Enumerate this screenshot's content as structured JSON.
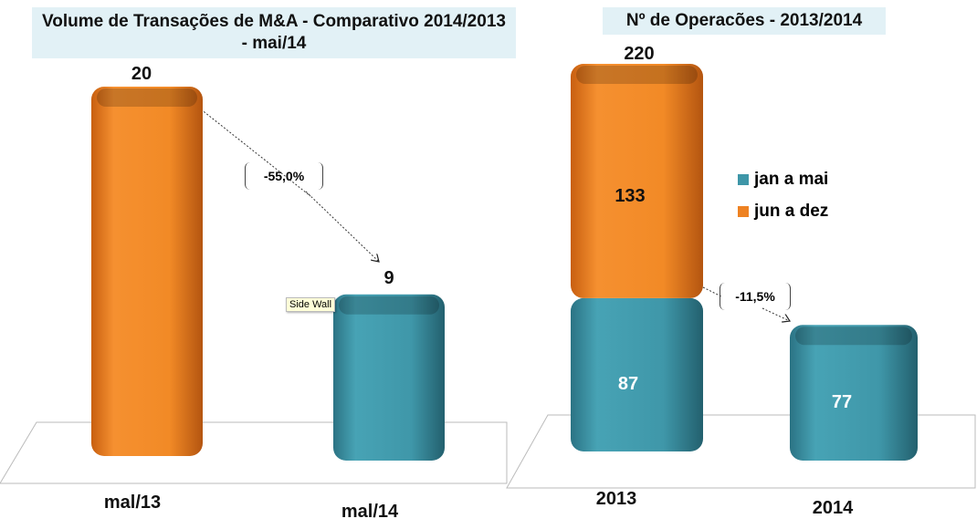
{
  "colors": {
    "orange": "#ee8222",
    "teal": "#3e96a8",
    "title_bg": "#e2f1f6"
  },
  "tooltip": "Side Wall",
  "chart_data": [
    {
      "type": "bar",
      "title_line1": "Volume de Transações de M&A - Comparativo 2014/2013",
      "title_line2": "-  mai/14",
      "categories": [
        "mal/13",
        "mal/14"
      ],
      "values": [
        20,
        9
      ],
      "value_labels": [
        "20",
        "9"
      ],
      "change_label": "-55,0%",
      "ylim": [
        0,
        20
      ]
    },
    {
      "type": "bar",
      "stacked": true,
      "title": "Nº de Operacões  - 2013/2014",
      "categories": [
        "2013",
        "2014"
      ],
      "series": [
        {
          "name": "jan a mai",
          "values": [
            87,
            77
          ],
          "labels": [
            "87",
            "77"
          ]
        },
        {
          "name": "jun a dez",
          "values": [
            133,
            null
          ],
          "labels": [
            "133",
            ""
          ]
        }
      ],
      "total_labels": [
        "220",
        ""
      ],
      "change_label": "-11,5%",
      "legend": "right",
      "ylim": [
        0,
        220
      ]
    }
  ]
}
